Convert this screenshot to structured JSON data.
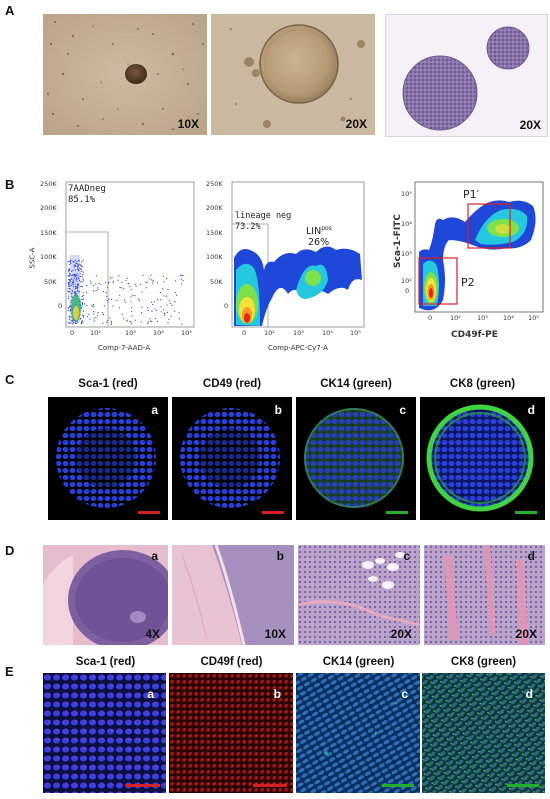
{
  "panels": {
    "A": {
      "letter": "A",
      "images": [
        {
          "mag": "10X",
          "desc_icon": "spheroid-brightfield-small"
        },
        {
          "mag": "20X",
          "desc_icon": "spheroid-brightfield-large"
        },
        {
          "mag": "20X",
          "desc_icon": "spheroid-he-section"
        }
      ]
    },
    "B": {
      "letter": "B",
      "plot1": {
        "gate_label": "7AADneg",
        "gate_pct": "85.1%",
        "ylabel": "SSC-A",
        "xlabel": "Comp-7-AAD-A",
        "yticks": [
          "250K",
          "200K",
          "150K",
          "100K",
          "50K",
          "0"
        ],
        "xticks": [
          "0",
          "10²",
          "10³",
          "10⁴",
          "10⁵"
        ]
      },
      "plot2": {
        "gate_label": "lineage neg",
        "gate_pct": "73.2%",
        "pos_label": "LIN",
        "pos_sup": "pos",
        "pos_pct": "26%",
        "xlabel": "Comp-APC-Cy7-A",
        "yticks": [
          "250K",
          "200K",
          "150K",
          "100K",
          "50K",
          "0"
        ],
        "xticks": [
          "0",
          "10²",
          "10³",
          "10⁴",
          "10⁵"
        ]
      },
      "plot3": {
        "gate1": "P1′",
        "gate2": "P2",
        "ylabel": "Sca-1-FITC",
        "xlabel": "CD49f-PE",
        "yticks": [
          "10⁵",
          "10⁴",
          "10³",
          "10²",
          "0"
        ],
        "xticks": [
          "0",
          "10²",
          "10³",
          "10⁴",
          "10⁵"
        ]
      }
    },
    "C": {
      "letter": "C",
      "titles": [
        "Sca-1 (red)",
        "CD49 (red)",
        "CK14 (green)",
        "CK8 (green)"
      ],
      "sublabels": [
        "a",
        "b",
        "c",
        "d"
      ]
    },
    "D": {
      "letter": "D",
      "sublabels": [
        "a",
        "b",
        "c",
        "d"
      ],
      "mags": [
        "4X",
        "10X",
        "20X",
        "20X"
      ]
    },
    "E": {
      "letter": "E",
      "titles": [
        "Sca-1 (red)",
        "CD49f (red)",
        "CK14 (green)",
        "CK8 (green)"
      ],
      "sublabels": [
        "a",
        "b",
        "c",
        "d"
      ]
    }
  },
  "colors": {
    "scale_red": "#d42020",
    "scale_green": "#22b02a",
    "gate_red": "#e02020"
  }
}
